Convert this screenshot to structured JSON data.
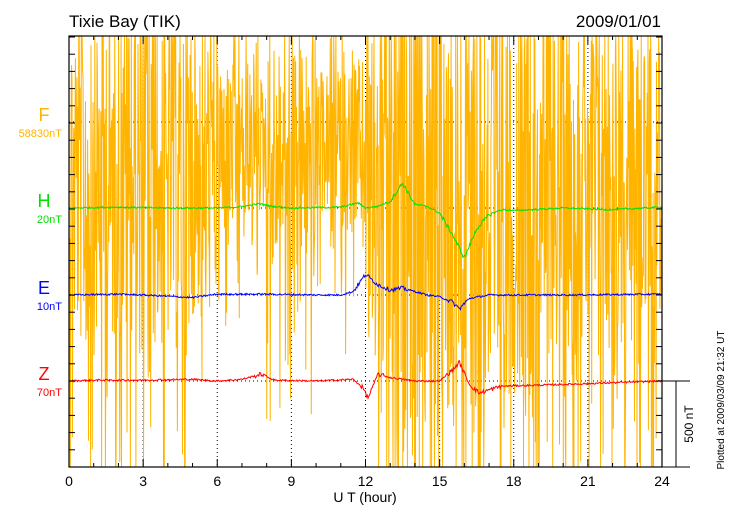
{
  "chart_data": {
    "type": "line",
    "title": "Tixie Bay (TIK)",
    "date": "2009/01/01",
    "xlabel": "U T (hour)",
    "xlim": [
      0,
      24
    ],
    "xticks": [
      "0",
      "3",
      "6",
      "9",
      "12",
      "15",
      "18",
      "21",
      "24"
    ],
    "scale_bar": "500 nT",
    "footnote": "Plotted at 2009/03/09 21:32 UT",
    "series": [
      {
        "name": "F",
        "base_label": "58830nT",
        "color": "#ffb400",
        "activity": [
          3,
          3,
          3,
          3,
          3,
          2.5,
          1.5,
          1.2,
          2,
          2,
          1.2,
          1.5,
          3.5,
          4,
          4,
          4,
          4,
          3.5,
          3.5,
          3,
          3,
          3,
          3,
          2.5
        ],
        "points": [
          [
            0,
            0
          ],
          [
            24,
            0
          ]
        ]
      },
      {
        "name": "H",
        "base_label": "20nT",
        "color": "#00e000",
        "points": [
          [
            0,
            0
          ],
          [
            2,
            5
          ],
          [
            4,
            0
          ],
          [
            6,
            0
          ],
          [
            7,
            8
          ],
          [
            7.7,
            25
          ],
          [
            8.2,
            10
          ],
          [
            9,
            0
          ],
          [
            11,
            5
          ],
          [
            11.7,
            30
          ],
          [
            12,
            0
          ],
          [
            12.5,
            10
          ],
          [
            13,
            40
          ],
          [
            13.5,
            145
          ],
          [
            14,
            20
          ],
          [
            14.5,
            10
          ],
          [
            15,
            -30
          ],
          [
            15.5,
            -150
          ],
          [
            16,
            -290
          ],
          [
            16.5,
            -120
          ],
          [
            17,
            -40
          ],
          [
            17.5,
            -10
          ],
          [
            18,
            -15
          ],
          [
            20,
            0
          ],
          [
            22,
            -10
          ],
          [
            24,
            5
          ]
        ]
      },
      {
        "name": "E",
        "base_label": "10nT",
        "color": "#0000ff",
        "points": [
          [
            0,
            0
          ],
          [
            2,
            5
          ],
          [
            3,
            0
          ],
          [
            5,
            -15
          ],
          [
            6,
            5
          ],
          [
            8,
            5
          ],
          [
            10,
            0
          ],
          [
            11,
            0
          ],
          [
            11.5,
            20
          ],
          [
            12,
            120
          ],
          [
            12.5,
            60
          ],
          [
            13,
            30
          ],
          [
            13.5,
            40
          ],
          [
            14,
            20
          ],
          [
            14.5,
            0
          ],
          [
            15,
            -10
          ],
          [
            15.5,
            -40
          ],
          [
            15.8,
            -80
          ],
          [
            16.2,
            -20
          ],
          [
            17,
            0
          ],
          [
            20,
            0
          ],
          [
            24,
            5
          ]
        ]
      },
      {
        "name": "Z",
        "base_label": "70nT",
        "color": "#ff0000",
        "points": [
          [
            0,
            0
          ],
          [
            1,
            5
          ],
          [
            3,
            5
          ],
          [
            5,
            10
          ],
          [
            6,
            0
          ],
          [
            7,
            10
          ],
          [
            7.8,
            40
          ],
          [
            8.3,
            5
          ],
          [
            10,
            0
          ],
          [
            11.5,
            10
          ],
          [
            11.9,
            -40
          ],
          [
            12.1,
            -100
          ],
          [
            12.5,
            40
          ],
          [
            13,
            20
          ],
          [
            13.5,
            10
          ],
          [
            14,
            0
          ],
          [
            15,
            0
          ],
          [
            15.5,
            60
          ],
          [
            15.8,
            110
          ],
          [
            16.2,
            -20
          ],
          [
            16.6,
            -70
          ],
          [
            17.5,
            -30
          ],
          [
            20,
            -20
          ],
          [
            24,
            0
          ]
        ]
      }
    ]
  }
}
